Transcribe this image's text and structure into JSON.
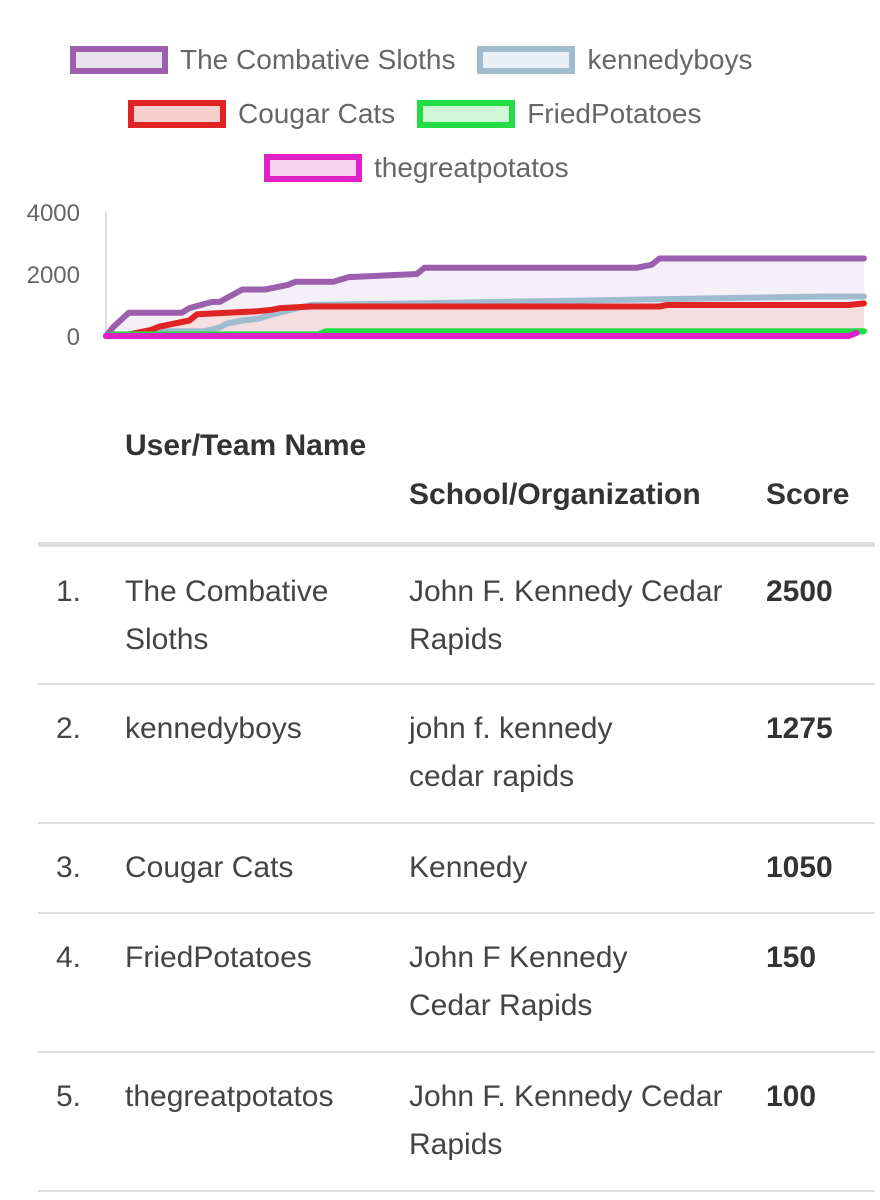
{
  "legend": [
    {
      "label": "The Combative Sloths",
      "stroke": "#9b5fad",
      "fill": "#ece1f0"
    },
    {
      "label": "kennedyboys",
      "stroke": "#9fbbd0",
      "fill": "#e9f0f5"
    },
    {
      "label": "Cougar Cats",
      "stroke": "#e02424",
      "fill": "#f8cfcf"
    },
    {
      "label": "FriedPotatoes",
      "stroke": "#22dd44",
      "fill": "#d0f7d6"
    },
    {
      "label": "thegreatpotatos",
      "stroke": "#e020c8",
      "fill": "#f8d0f0"
    }
  ],
  "chart_data": {
    "type": "line",
    "ylim": [
      0,
      4000
    ],
    "yticks": [
      "0",
      "2000",
      "4000"
    ],
    "grid": false,
    "legend_position": "top",
    "series": [
      {
        "name": "The Combative Sloths",
        "stroke": "#9b5fad",
        "fill": "#ece1f0",
        "x": [
          0,
          0.01,
          0.03,
          0.1,
          0.11,
          0.14,
          0.15,
          0.18,
          0.21,
          0.23,
          0.24,
          0.25,
          0.3,
          0.32,
          0.41,
          0.42,
          0.7,
          0.72,
          0.73,
          1.0
        ],
        "y": [
          0,
          300,
          750,
          750,
          900,
          1100,
          1100,
          1500,
          1500,
          1600,
          1650,
          1750,
          1750,
          1900,
          2000,
          2200,
          2200,
          2300,
          2500,
          2500
        ]
      },
      {
        "name": "kennedyboys",
        "stroke": "#9fbbd0",
        "fill": "#e9f0f5",
        "x": [
          0,
          0.06,
          0.07,
          0.13,
          0.15,
          0.16,
          0.18,
          0.2,
          0.22,
          0.27,
          0.95,
          1.0
        ],
        "y": [
          0,
          0,
          150,
          150,
          275,
          400,
          500,
          550,
          700,
          1000,
          1275,
          1275
        ]
      },
      {
        "name": "Cougar Cats",
        "stroke": "#e02424",
        "fill": "#f8cfcf",
        "x": [
          0,
          0.02,
          0.06,
          0.07,
          0.09,
          0.11,
          0.12,
          0.16,
          0.2,
          0.22,
          0.23,
          0.27,
          0.73,
          0.74,
          0.98,
          1.0
        ],
        "y": [
          0,
          0,
          200,
          300,
          400,
          500,
          700,
          750,
          800,
          850,
          900,
          950,
          950,
          1000,
          1000,
          1050
        ]
      },
      {
        "name": "FriedPotatoes",
        "stroke": "#22dd44",
        "fill": "#d0f7d6",
        "x": [
          0,
          0.01,
          0.28,
          0.29,
          1.0
        ],
        "y": [
          0,
          50,
          50,
          150,
          150
        ]
      },
      {
        "name": "thegreatpotatos",
        "stroke": "#e020c8",
        "fill": "#f8d0f0",
        "x": [
          0,
          0.28,
          0.29,
          0.98,
          0.99
        ],
        "y": [
          0,
          0,
          0,
          0,
          100
        ]
      }
    ]
  },
  "table": {
    "headers": {
      "name": "User/Team Name",
      "org": "School/Organization",
      "score": "Score"
    },
    "rows": [
      {
        "rank": "1.",
        "name": "The Combative Sloths",
        "org": "John F. Kennedy Cedar Rapids",
        "score": "2500"
      },
      {
        "rank": "2.",
        "name": "kennedyboys",
        "org": "john f. kennedy cedar rapids",
        "score": "1275"
      },
      {
        "rank": "3.",
        "name": "Cougar Cats",
        "org": "Kennedy",
        "score": "1050"
      },
      {
        "rank": "4.",
        "name": "FriedPotatoes",
        "org": "John F Kennedy Cedar Rapids",
        "score": "150"
      },
      {
        "rank": "5.",
        "name": "thegreatpotatos",
        "org": "John F. Kennedy Cedar Rapids",
        "score": "100"
      }
    ]
  }
}
